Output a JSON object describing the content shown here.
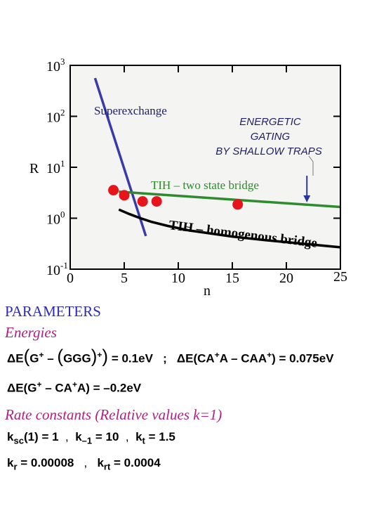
{
  "chart_data": {
    "type": "line",
    "x_axis": {
      "label": "n",
      "range": [
        0,
        25
      ],
      "ticks": [
        "0",
        "5",
        "10",
        "15",
        "20",
        "25"
      ]
    },
    "y_axis": {
      "label": "R",
      "scale": "log",
      "range_exponent": [
        -1,
        3
      ],
      "ticks": [
        {
          "base": "10",
          "exp": "-1"
        },
        {
          "base": "10",
          "exp": "0"
        },
        {
          "base": "10",
          "exp": "1"
        },
        {
          "base": "10",
          "exp": "2"
        },
        {
          "base": "10",
          "exp": "3"
        }
      ]
    },
    "series": [
      {
        "name": "Superexchange",
        "type": "line",
        "color": "#3a3aa8",
        "x": [
          2.3,
          7.0
        ],
        "log10_y": [
          2.75,
          -0.35
        ]
      },
      {
        "name": "TIH – two state bridge",
        "type": "line",
        "color": "#2e8b2e",
        "x": [
          4.5,
          25
        ],
        "log10_y": [
          0.52,
          0.22
        ]
      },
      {
        "name": "TIH – homogenous bridge",
        "type": "line",
        "color": "#000000",
        "x": [
          4.5,
          5.5,
          6.5,
          7.5,
          9,
          11,
          13,
          15,
          18,
          21,
          25
        ],
        "log10_y": [
          0.17,
          0.08,
          0.0,
          -0.07,
          -0.15,
          -0.24,
          -0.3,
          -0.36,
          -0.43,
          -0.49,
          -0.57
        ]
      },
      {
        "name": "points",
        "type": "scatter",
        "color": "#e8141b",
        "x": [
          4.0,
          5.0,
          6.7,
          8.0,
          15.5
        ],
        "log10_y": [
          0.55,
          0.45,
          0.33,
          0.33,
          0.27
        ]
      }
    ],
    "annotations": {
      "superexchange": "Superexchange",
      "energetic_line1": "ENERGETIC",
      "energetic_line2": "GATING",
      "energetic_line3": "BY SHALLOW TRAPS",
      "two_state": "TIH – two state bridge",
      "homogenous": "TIH – homogenous bridge",
      "arrow_x": 21.9
    }
  },
  "parameters": {
    "title": "PARAMETERS",
    "energies_heading": "Energies",
    "eq1": {
      "lhs": "ΔE",
      "g_plus": "G",
      "minus": " – ",
      "ggg": "GGG",
      "rhs": "= 0.1eV"
    },
    "sep": ";",
    "eq2": {
      "lhs": "ΔE(CA",
      "a_part": "A – CAA",
      "rhs": ") = 0.075eV"
    },
    "eq3": {
      "lhs": "ΔE(G",
      "mid": " – CA",
      "a": "A) = –0.2eV"
    },
    "plus": "+",
    "rate_heading": "Rate constants (Relative values k=1)",
    "rates_line1": [
      {
        "k": "k",
        "sub": "sc",
        "val": "(1) = 1"
      },
      {
        "k": "k",
        "sub": "–1",
        "val": " = 10"
      },
      {
        "k": "k",
        "sub": "t",
        "val": " = 1.5"
      }
    ],
    "rates_line2": [
      {
        "k": "k",
        "sub": "r",
        "val": " = 0.00008"
      },
      {
        "k": "k",
        "sub": "rt",
        "val": " = 0.0004"
      }
    ],
    "comma": ","
  }
}
